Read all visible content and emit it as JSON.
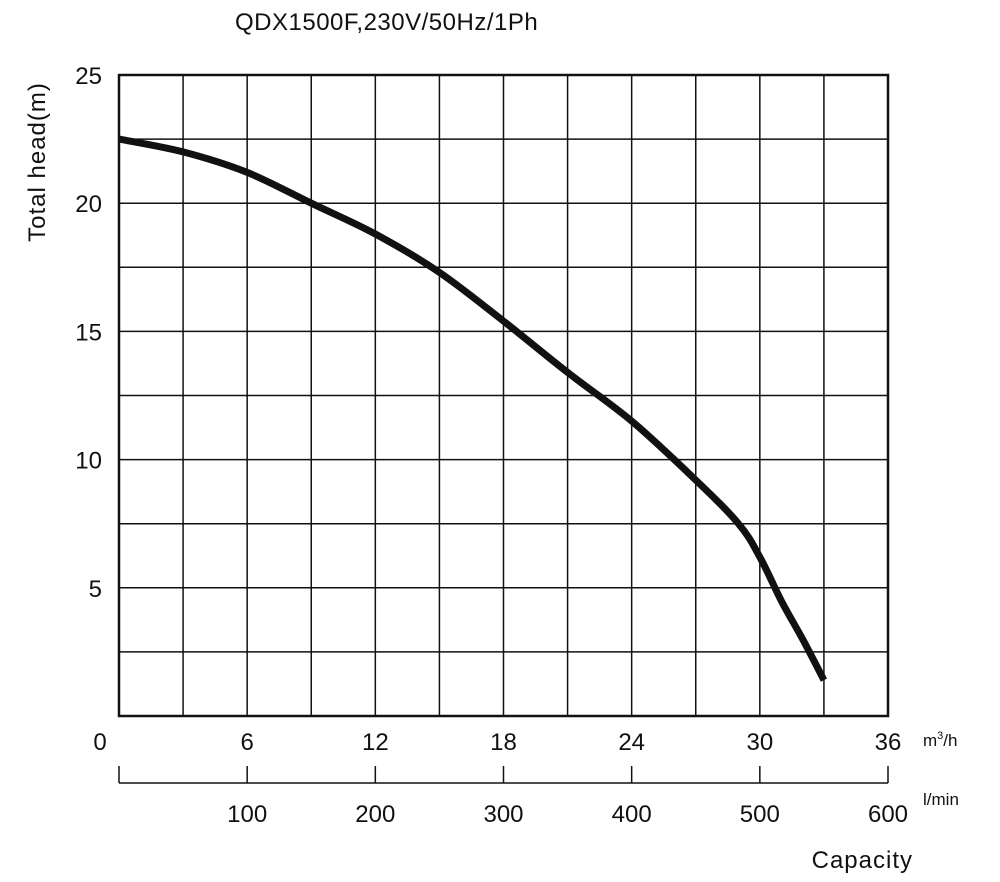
{
  "chart_data": {
    "type": "line",
    "title": "QDX1500F,230V/50Hz/1Ph",
    "ylabel": "Total head(m)",
    "xlabel": "Capacity",
    "x_unit_primary": "m³/h",
    "x_unit_primary_base": "m",
    "x_unit_primary_sup": "3",
    "x_unit_primary_tail": "/h",
    "x_unit_secondary": "l/min",
    "xlim": [
      0,
      36
    ],
    "ylim": [
      0,
      25
    ],
    "x_ticks": [
      "0",
      "6",
      "12",
      "18",
      "24",
      "30",
      "36"
    ],
    "x_ticks_secondary": [
      "100",
      "200",
      "300",
      "400",
      "500",
      "600"
    ],
    "y_ticks": [
      "5",
      "10",
      "15",
      "20",
      "25"
    ],
    "grid": true,
    "line_color": "#111111",
    "series": [
      {
        "x": [
          0,
          3,
          6,
          9,
          12,
          15,
          18,
          21,
          24,
          27,
          29,
          30,
          31,
          32,
          33
        ],
        "y": [
          22.5,
          22.0,
          21.2,
          20.0,
          18.8,
          17.3,
          15.4,
          13.4,
          11.5,
          9.2,
          7.5,
          6.2,
          4.5,
          3.0,
          1.4
        ]
      }
    ]
  }
}
